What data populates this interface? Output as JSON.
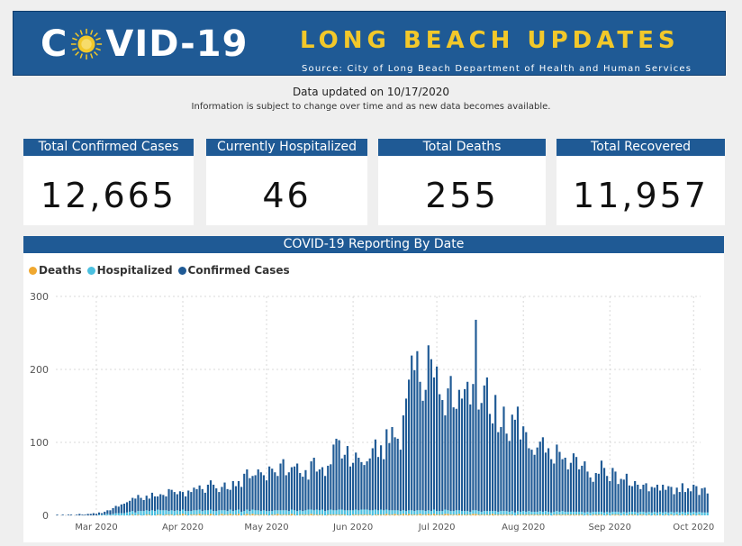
{
  "banner": {
    "logo_before": "C",
    "logo_after": "VID-19",
    "title": "LONG BEACH UPDATES",
    "source": "Source: City of Long Beach Department of Health and Human Services"
  },
  "updated_text": "Data updated on 10/17/2020",
  "info_text": "Information is subject to change over time and as new data becomes available.",
  "cards": [
    {
      "label": "Total Confirmed Cases",
      "value": "12,665"
    },
    {
      "label": "Currently Hospitalized",
      "value": "46"
    },
    {
      "label": "Total Deaths",
      "value": "255"
    },
    {
      "label": "Total Recovered",
      "value": "11,957"
    }
  ],
  "colors": {
    "brand": "#1f5a95",
    "accent": "#f2c82a",
    "deaths": "#f0a830",
    "hospitalized": "#4bc0e0",
    "confirmed": "#1f5a95"
  },
  "chart_data": {
    "type": "bar",
    "stacked": true,
    "title": "COVID-19 Reporting By Date",
    "xlabel": "",
    "ylabel": "",
    "ylim": [
      0,
      300
    ],
    "yticks": [
      0,
      100,
      200,
      300
    ],
    "grid": true,
    "legend_position": "top-left",
    "x_start": "2020-03-01",
    "x_end": "2020-10-17",
    "x_tick_labels": [
      {
        "date": "2020-03-15",
        "label": "Mar 2020"
      },
      {
        "date": "2020-04-15",
        "label": "Apr 2020"
      },
      {
        "date": "2020-05-15",
        "label": "May 2020"
      },
      {
        "date": "2020-06-15",
        "label": "Jun 2020"
      },
      {
        "date": "2020-07-15",
        "label": "Jul 2020"
      },
      {
        "date": "2020-08-15",
        "label": "Aug 2020"
      },
      {
        "date": "2020-09-15",
        "label": "Sep 2020"
      },
      {
        "date": "2020-10-15",
        "label": "Oct 2020"
      }
    ],
    "series": [
      {
        "name": "Deaths",
        "color": "#f0a830",
        "values": [
          0,
          0,
          0,
          0,
          0,
          0,
          0,
          0,
          0,
          0,
          0,
          0,
          0,
          0,
          0,
          0,
          0,
          0,
          0,
          0,
          0,
          0,
          0,
          0,
          0,
          0,
          0,
          1,
          0,
          1,
          0,
          0,
          1,
          1,
          0,
          0,
          1,
          1,
          0,
          1,
          1,
          1,
          0,
          1,
          1,
          2,
          1,
          0,
          1,
          1,
          1,
          2,
          1,
          1,
          1,
          2,
          1,
          0,
          1,
          2,
          1,
          1,
          2,
          1,
          1,
          2,
          0,
          1,
          2,
          1,
          2,
          1,
          1,
          1,
          1,
          1,
          0,
          1,
          1,
          2,
          1,
          1,
          1,
          1,
          2,
          1,
          0,
          1,
          1,
          1,
          1,
          2,
          1,
          1,
          1,
          1,
          0,
          1,
          1,
          1,
          1,
          1,
          1,
          1,
          0,
          0,
          1,
          1,
          1,
          1,
          1,
          1,
          1,
          0,
          1,
          1,
          1,
          1,
          2,
          1,
          1,
          2,
          1,
          1,
          2,
          1,
          2,
          1,
          1,
          1,
          2,
          1,
          1,
          2,
          1,
          2,
          1,
          1,
          1,
          2,
          2,
          1,
          1,
          1,
          2,
          1,
          1,
          1,
          1,
          2,
          2,
          1,
          1,
          1,
          1,
          1,
          2,
          1,
          1,
          1,
          1,
          1,
          1,
          1,
          0,
          1,
          1,
          1,
          1,
          1,
          1,
          1,
          1,
          1,
          1,
          1,
          1,
          0,
          1,
          1,
          1,
          1,
          1,
          1,
          1,
          1,
          1,
          1,
          1,
          0,
          1,
          0,
          1,
          1,
          1,
          1,
          0,
          1,
          0,
          1,
          1,
          1,
          0,
          1,
          0,
          1,
          1,
          1,
          0,
          1,
          1,
          0,
          1,
          0,
          1,
          0,
          1,
          0,
          1,
          0,
          1,
          0,
          1,
          0,
          1,
          0,
          1,
          0,
          1,
          0,
          1,
          0,
          0,
          0
        ]
      },
      {
        "name": "Hospitalized",
        "color": "#4bc0e0",
        "values": [
          0,
          0,
          0,
          0,
          0,
          0,
          0,
          0,
          0,
          0,
          0,
          0,
          0,
          0,
          0,
          1,
          1,
          1,
          2,
          1,
          2,
          3,
          3,
          3,
          3,
          4,
          5,
          5,
          4,
          5,
          6,
          6,
          6,
          5,
          7,
          6,
          7,
          6,
          7,
          6,
          5,
          6,
          6,
          6,
          5,
          6,
          5,
          6,
          5,
          6,
          6,
          6,
          5,
          6,
          6,
          6,
          5,
          6,
          6,
          5,
          6,
          5,
          6,
          5,
          6,
          6,
          5,
          5,
          6,
          5,
          6,
          6,
          6,
          5,
          6,
          5,
          6,
          5,
          6,
          5,
          6,
          6,
          6,
          5,
          6,
          6,
          6,
          6,
          5,
          6,
          7,
          6,
          6,
          7,
          6,
          7,
          6,
          6,
          7,
          6,
          6,
          7,
          7,
          6,
          7,
          7,
          6,
          7,
          6,
          7,
          7,
          7,
          6,
          7,
          7,
          6,
          7,
          6,
          6,
          6,
          6,
          5,
          6,
          5,
          5,
          5,
          5,
          6,
          5,
          6,
          5,
          6,
          5,
          5,
          5,
          6,
          5,
          5,
          5,
          6,
          5,
          5,
          5,
          6,
          5,
          5,
          5,
          5,
          4,
          5,
          5,
          5,
          4,
          5,
          5,
          5,
          4,
          5,
          4,
          5,
          5,
          5,
          4,
          5,
          4,
          5,
          4,
          5,
          4,
          5,
          4,
          4,
          4,
          5,
          4,
          5,
          4,
          4,
          4,
          5,
          4,
          5,
          4,
          4,
          4,
          4,
          4,
          4,
          4,
          4,
          4,
          4,
          4,
          4,
          4,
          4,
          4,
          4,
          4,
          4,
          4,
          4,
          4,
          4,
          4,
          4,
          4,
          4,
          4,
          4,
          4,
          4,
          4,
          4,
          4,
          4,
          4,
          4,
          4,
          4,
          4,
          4,
          4,
          4,
          4,
          4,
          4,
          4,
          4,
          4,
          4,
          4,
          4,
          4,
          4
        ]
      },
      {
        "name": "Confirmed Cases",
        "color": "#1f5a95",
        "values": [
          1,
          0,
          1,
          0,
          1,
          1,
          0,
          1,
          2,
          1,
          1,
          2,
          2,
          3,
          2,
          3,
          2,
          4,
          5,
          6,
          8,
          10,
          9,
          12,
          13,
          14,
          15,
          18,
          19,
          22,
          18,
          15,
          20,
          17,
          24,
          20,
          18,
          22,
          21,
          19,
          30,
          28,
          26,
          22,
          27,
          24,
          20,
          28,
          26,
          31,
          29,
          33,
          30,
          24,
          35,
          40,
          36,
          31,
          25,
          32,
          38,
          30,
          27,
          41,
          33,
          39,
          34,
          51,
          55,
          45,
          46,
          48,
          56,
          53,
          48,
          42,
          61,
          58,
          52,
          47,
          64,
          70,
          48,
          53,
          58,
          60,
          65,
          51,
          47,
          55,
          41,
          66,
          72,
          52,
          56,
          58,
          48,
          61,
          62,
          90,
          98,
          95,
          70,
          76,
          88,
          60,
          65,
          78,
          72,
          65,
          61,
          66,
          71,
          85,
          96,
          73,
          88,
          70,
          110,
          92,
          114,
          100,
          98,
          84,
          130,
          154,
          179,
          212,
          193,
          218,
          176,
          150,
          166,
          226,
          208,
          181,
          198,
          160,
          152,
          129,
          167,
          185,
          142,
          139,
          165,
          154,
          167,
          177,
          147,
          173,
          261,
          139,
          149,
          172,
          183,
          133,
          120,
          159,
          109,
          115,
          143,
          106,
          97,
          132,
          127,
          143,
          99,
          116,
          109,
          86,
          85,
          78,
          88,
          95,
          102,
          80,
          87,
          73,
          66,
          91,
          82,
          71,
          74,
          58,
          67,
          80,
          75,
          58,
          63,
          70,
          55,
          48,
          41,
          53,
          52,
          70,
          61,
          49,
          43,
          60,
          55,
          38,
          46,
          44,
          53,
          36,
          35,
          42,
          38,
          31,
          37,
          40,
          28,
          35,
          33,
          38,
          29,
          38,
          30,
          36,
          34,
          25,
          33,
          28,
          39,
          28,
          32,
          29,
          37,
          36,
          23,
          33,
          34,
          26,
          32,
          17,
          36,
          40,
          31,
          25
        ]
      }
    ]
  }
}
